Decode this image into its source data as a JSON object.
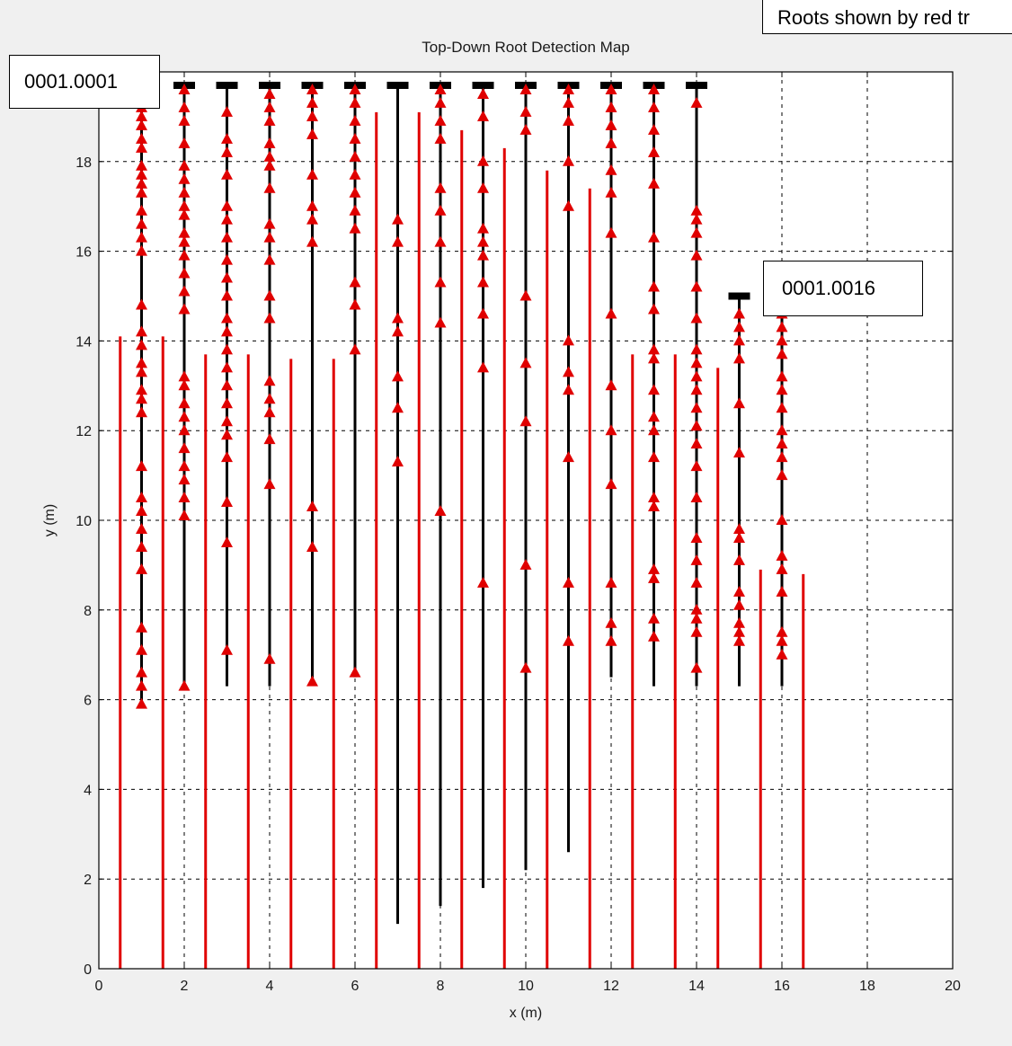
{
  "chart_data": {
    "type": "line",
    "title": "Top-Down Root Detection Map",
    "xlabel": "x (m)",
    "ylabel": "y (m)",
    "xlim": [
      0,
      20
    ],
    "ylim": [
      0,
      20
    ],
    "xticks": [
      0,
      2,
      4,
      6,
      8,
      10,
      12,
      14,
      16,
      18,
      20
    ],
    "yticks": [
      0,
      2,
      4,
      6,
      8,
      10,
      12,
      14,
      16,
      18,
      20
    ],
    "grid": true,
    "colors": {
      "scan": "#000000",
      "root": "#e00000",
      "marker": "#e00000",
      "start": "#000000"
    },
    "scan_lines": [
      {
        "x": 1,
        "y_start": 19.7,
        "y_end": 5.9,
        "detections": [
          19.6,
          19.4,
          19.2,
          19.0,
          18.8,
          18.5,
          18.3,
          17.9,
          17.7,
          17.5,
          17.3,
          16.9,
          16.6,
          16.3,
          16.0,
          14.8,
          14.2,
          13.9,
          13.5,
          13.3,
          12.9,
          12.7,
          12.4,
          11.2,
          10.5,
          10.2,
          9.8,
          9.4,
          8.9,
          7.6,
          7.1,
          6.6,
          6.3,
          5.9
        ]
      },
      {
        "x": 2,
        "y_start": 19.7,
        "y_end": 6.3,
        "detections": [
          19.6,
          19.2,
          18.9,
          18.4,
          17.9,
          17.6,
          17.3,
          17.0,
          16.8,
          16.4,
          16.2,
          15.9,
          15.5,
          15.1,
          14.7,
          13.2,
          13.0,
          12.6,
          12.3,
          12.0,
          11.6,
          11.2,
          10.9,
          10.5,
          10.1,
          6.3
        ]
      },
      {
        "x": 3,
        "y_start": 19.7,
        "y_end": 6.3,
        "detections": [
          19.1,
          18.5,
          18.2,
          17.7,
          17.0,
          16.7,
          16.3,
          15.8,
          15.4,
          15.0,
          14.5,
          14.2,
          13.8,
          13.4,
          13.0,
          12.6,
          12.2,
          11.9,
          11.4,
          10.4,
          9.5,
          7.1
        ]
      },
      {
        "x": 4,
        "y_start": 19.7,
        "y_end": 6.3,
        "detections": [
          19.5,
          19.2,
          18.9,
          18.4,
          18.1,
          17.9,
          17.4,
          16.6,
          16.3,
          15.8,
          15.0,
          14.5,
          13.1,
          12.7,
          12.4,
          11.8,
          10.8,
          6.9
        ]
      },
      {
        "x": 5,
        "y_start": 19.7,
        "y_end": 6.4,
        "detections": [
          19.6,
          19.3,
          19.0,
          18.6,
          17.7,
          17.0,
          16.7,
          16.2,
          10.3,
          9.4,
          6.4
        ]
      },
      {
        "x": 6,
        "y_start": 19.7,
        "y_end": 6.5,
        "detections": [
          19.6,
          19.3,
          18.9,
          18.5,
          18.1,
          17.7,
          17.3,
          16.9,
          16.5,
          15.3,
          14.8,
          13.8,
          6.6
        ]
      },
      {
        "x": 7,
        "y_start": 19.7,
        "y_end": 1.0,
        "detections": [
          16.7,
          16.2,
          14.5,
          14.2,
          13.2,
          12.5,
          11.3
        ]
      },
      {
        "x": 8,
        "y_start": 19.7,
        "y_end": 1.4,
        "detections": [
          19.6,
          19.3,
          18.9,
          18.5,
          17.4,
          16.9,
          16.2,
          15.3,
          14.4,
          10.2
        ]
      },
      {
        "x": 9,
        "y_start": 19.7,
        "y_end": 1.8,
        "detections": [
          19.5,
          19.0,
          18.0,
          17.4,
          16.5,
          16.2,
          15.9,
          15.3,
          14.6,
          13.4,
          8.6
        ]
      },
      {
        "x": 10,
        "y_start": 19.7,
        "y_end": 2.2,
        "detections": [
          19.6,
          19.1,
          18.7,
          15.0,
          13.5,
          12.2,
          9.0,
          6.7
        ]
      },
      {
        "x": 11,
        "y_start": 19.7,
        "y_end": 2.6,
        "detections": [
          19.6,
          19.3,
          18.9,
          18.0,
          17.0,
          14.0,
          13.3,
          12.9,
          11.4,
          8.6,
          7.3
        ]
      },
      {
        "x": 12,
        "y_start": 19.7,
        "y_end": 6.5,
        "detections": [
          19.6,
          19.2,
          18.8,
          18.4,
          17.8,
          17.3,
          16.4,
          14.6,
          13.0,
          12.0,
          10.8,
          8.6,
          7.7,
          7.3
        ]
      },
      {
        "x": 13,
        "y_start": 19.7,
        "y_end": 6.3,
        "detections": [
          19.6,
          19.2,
          18.7,
          18.2,
          17.5,
          16.3,
          15.2,
          14.7,
          13.8,
          13.6,
          12.9,
          12.3,
          12.0,
          11.4,
          10.5,
          10.3,
          8.9,
          8.7,
          7.8,
          7.4
        ]
      },
      {
        "x": 14,
        "y_start": 19.7,
        "y_end": 6.3,
        "detections": [
          19.3,
          16.9,
          16.7,
          16.4,
          15.9,
          15.2,
          14.5,
          13.8,
          13.5,
          13.2,
          12.9,
          12.5,
          12.1,
          11.7,
          11.2,
          10.5,
          9.6,
          9.1,
          8.6,
          8.0,
          7.8,
          7.5,
          6.7
        ]
      },
      {
        "x": 15,
        "y_start": 15.0,
        "y_end": 6.3,
        "detections": [
          14.6,
          14.3,
          14.0,
          13.6,
          12.6,
          11.5,
          9.8,
          9.6,
          9.1,
          8.4,
          8.1,
          7.7,
          7.5,
          7.3
        ]
      },
      {
        "x": 16,
        "y_start": 14.9,
        "y_end": 6.3,
        "detections": [
          14.6,
          14.3,
          14.0,
          13.7,
          13.2,
          12.9,
          12.5,
          12.0,
          11.7,
          11.4,
          11.0,
          10.0,
          9.2,
          8.9,
          8.4,
          7.5,
          7.3,
          7.0
        ]
      }
    ],
    "root_lines": [
      {
        "x": 0.5,
        "y_top": 14.1
      },
      {
        "x": 1.5,
        "y_top": 14.1
      },
      {
        "x": 2.5,
        "y_top": 13.7
      },
      {
        "x": 3.5,
        "y_top": 13.7
      },
      {
        "x": 4.5,
        "y_top": 13.6
      },
      {
        "x": 5.5,
        "y_top": 13.6
      },
      {
        "x": 6.5,
        "y_top": 19.1
      },
      {
        "x": 7.5,
        "y_top": 19.1
      },
      {
        "x": 8.5,
        "y_top": 18.7
      },
      {
        "x": 9.5,
        "y_top": 18.3
      },
      {
        "x": 10.5,
        "y_top": 17.8
      },
      {
        "x": 11.5,
        "y_top": 17.4
      },
      {
        "x": 12.5,
        "y_top": 13.7
      },
      {
        "x": 13.5,
        "y_top": 13.7
      },
      {
        "x": 14.5,
        "y_top": 13.4
      },
      {
        "x": 15.5,
        "y_top": 8.9
      },
      {
        "x": 16.5,
        "y_top": 8.8
      }
    ]
  },
  "callouts": {
    "top_right": "Roots shown by red tr",
    "first_line": "0001.0001",
    "last_line": "0001.0016"
  }
}
